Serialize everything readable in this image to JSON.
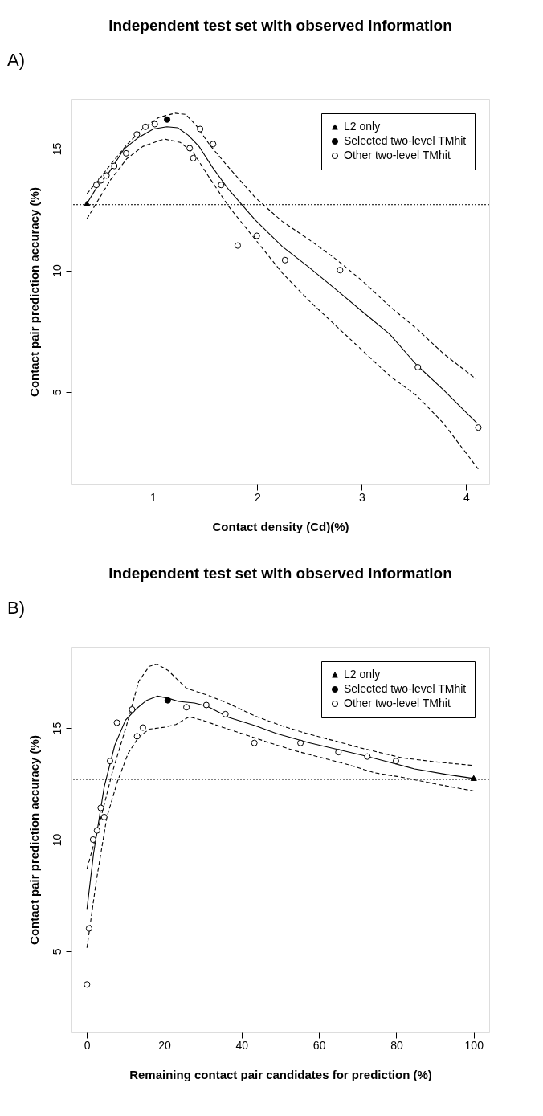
{
  "chart_data": [
    {
      "type": "scatter",
      "title": "Independent test set with observed information",
      "annotations": [
        "A)"
      ],
      "xlabel": "Contact density (Cd)(%)",
      "ylabel": "Contact pair prediction accuracy (%)",
      "xlim": [
        0.22,
        4.22
      ],
      "ylim": [
        1.2,
        17.05
      ],
      "xticks": [
        1,
        2,
        3,
        4
      ],
      "yticks": [
        5,
        10,
        15
      ],
      "grid": false,
      "legend": "top right",
      "ref_lines": [
        {
          "axis": "y",
          "value": 12.7,
          "line_style": "dotted",
          "color": "#000000"
        }
      ],
      "series": [
        {
          "name": "L2 only",
          "marker": "triangle",
          "color": "#000000",
          "x": [
            0.368
          ],
          "values": [
            12.75
          ]
        },
        {
          "name": "Selected two-level TMhit",
          "marker": "circle",
          "color": "#000000",
          "x": [
            1.136
          ],
          "values": [
            16.2
          ]
        },
        {
          "name": "Other two-level TMhit",
          "marker": "circle",
          "color": "#ffffff",
          "x": [
            0.458,
            0.504,
            0.555,
            0.63,
            0.743,
            0.846,
            0.928,
            1.018,
            1.352,
            1.386,
            1.452,
            1.576,
            1.653,
            1.812,
            1.995,
            2.265,
            2.792,
            3.537,
            4.116
          ],
          "values": [
            13.51,
            13.7,
            13.9,
            14.29,
            14.81,
            15.59,
            15.9,
            16.01,
            15.02,
            14.61,
            15.81,
            15.19,
            13.51,
            11.02,
            11.42,
            10.42,
            10.01,
            6.02,
            3.54
          ]
        },
        {
          "type": "line",
          "line_style": "solid",
          "color": "#000000",
          "x": [
            0.375,
            0.465,
            0.568,
            0.722,
            0.851,
            1.005,
            1.134,
            1.237,
            1.339,
            1.442,
            1.571,
            1.725,
            1.982,
            2.239,
            2.496,
            2.753,
            3.01,
            3.267,
            3.524,
            3.781,
            4.103
          ],
          "values": [
            12.8,
            13.43,
            13.95,
            14.98,
            15.43,
            15.81,
            15.9,
            15.86,
            15.55,
            15.09,
            14.23,
            13.32,
            12.06,
            10.98,
            10.12,
            9.21,
            8.29,
            7.38,
            6.12,
            5.09,
            3.72
          ]
        },
        {
          "type": "line",
          "line_style": "dashed",
          "color": "#000000",
          "x": [
            0.368,
            0.491,
            0.594,
            0.748,
            0.902,
            1.057,
            1.211,
            1.314,
            1.416,
            1.545,
            1.725,
            1.982,
            2.239,
            2.496,
            2.753,
            3.01,
            3.267,
            3.524,
            3.781,
            4.09
          ],
          "values": [
            13.15,
            13.78,
            14.35,
            15.15,
            15.83,
            16.29,
            16.46,
            16.41,
            15.95,
            15.15,
            14.23,
            12.98,
            12.01,
            11.26,
            10.46,
            9.55,
            8.52,
            7.61,
            6.58,
            5.55
          ]
        },
        {
          "type": "line",
          "line_style": "dashed",
          "color": "#000000",
          "x": [
            0.368,
            0.465,
            0.594,
            0.748,
            0.902,
            1.108,
            1.262,
            1.391,
            1.545,
            1.725,
            1.982,
            2.239,
            2.496,
            2.753,
            3.01,
            3.267,
            3.524,
            3.781,
            4.116
          ],
          "values": [
            12.12,
            12.81,
            13.72,
            14.58,
            15.09,
            15.4,
            15.26,
            14.81,
            13.78,
            12.63,
            11.26,
            9.89,
            8.75,
            7.72,
            6.69,
            5.66,
            4.86,
            3.72,
            1.83
          ]
        }
      ]
    },
    {
      "type": "scatter",
      "title": "Independent test set with observed information",
      "annotations": [
        "B)"
      ],
      "xlabel": "Remaining contact pair candidates for prediction (%)",
      "ylabel": "Contact pair prediction accuracy (%)",
      "xlim": [
        -4,
        104
      ],
      "ylim": [
        1.36,
        18.64
      ],
      "xticks": [
        0,
        20,
        40,
        60,
        80,
        100
      ],
      "yticks": [
        5,
        10,
        15
      ],
      "grid": false,
      "legend": "top right",
      "ref_lines": [
        {
          "axis": "y",
          "value": 12.7,
          "line_style": "dotted",
          "color": "#000000"
        }
      ],
      "series": [
        {
          "name": "L2 only",
          "marker": "triangle",
          "color": "#000000",
          "x": [
            100
          ],
          "values": [
            12.76
          ]
        },
        {
          "name": "Selected two-level TMhit",
          "marker": "circle",
          "color": "#000000",
          "x": [
            20.9
          ],
          "values": [
            16.24
          ]
        },
        {
          "name": "Other two-level TMhit",
          "marker": "circle",
          "color": "#ffffff",
          "x": [
            0,
            0.55,
            1.58,
            2.61,
            3.57,
            4.46,
            5.97,
            7.75,
            11.66,
            12.96,
            14.47,
            25.72,
            30.86,
            35.8,
            43.28,
            55.21,
            65.02,
            72.5,
            79.9
          ],
          "values": [
            3.51,
            6.02,
            10.0,
            10.41,
            11.42,
            11.01,
            13.52,
            15.24,
            15.83,
            14.63,
            15.02,
            15.93,
            16.03,
            15.62,
            14.33,
            14.33,
            13.92,
            13.72,
            13.52
          ]
        },
        {
          "type": "line",
          "line_style": "solid",
          "color": "#000000",
          "x": [
            0,
            1.71,
            4.46,
            7.2,
            9.95,
            12.69,
            15.43,
            18.18,
            20.9,
            23.66,
            27.78,
            31.2,
            36.7,
            43.55,
            49.04,
            57.27,
            64.13,
            70.99,
            77.85,
            84.71,
            92.94,
            100
          ],
          "values": [
            6.89,
            9.38,
            12.36,
            14.23,
            15.35,
            15.85,
            16.24,
            16.43,
            16.34,
            16.19,
            16.12,
            15.97,
            15.47,
            15.1,
            14.75,
            14.35,
            14.07,
            13.79,
            13.48,
            13.17,
            12.92,
            12.74
          ]
        },
        {
          "type": "line",
          "line_style": "dashed",
          "color": "#000000",
          "x": [
            0,
            3.09,
            6.52,
            10.63,
            13.37,
            16.12,
            18.18,
            20.9,
            25.72,
            31.2,
            36.7,
            43.55,
            50.41,
            57.27,
            64.13,
            70.99,
            81.28,
            90.19,
            100
          ],
          "values": [
            8.69,
            10.62,
            12.99,
            15.35,
            17.09,
            17.77,
            17.86,
            17.59,
            16.78,
            16.47,
            16.09,
            15.53,
            15.1,
            14.73,
            14.42,
            14.1,
            13.67,
            13.48,
            13.32
          ]
        },
        {
          "type": "line",
          "line_style": "dashed",
          "color": "#000000",
          "x": [
            0,
            2.4,
            5.14,
            7.89,
            10.63,
            13.37,
            16.12,
            20.23,
            22.98,
            26.41,
            29.84,
            33.95,
            40.12,
            46.98,
            53.84,
            60.7,
            67.56,
            74.42,
            81.28,
            90.19,
            100
          ],
          "values": [
            5.15,
            8.13,
            11.0,
            12.61,
            13.86,
            14.6,
            14.95,
            15.04,
            15.16,
            15.5,
            15.35,
            15.1,
            14.75,
            14.35,
            13.98,
            13.67,
            13.36,
            12.99,
            12.8,
            12.49,
            12.18
          ]
        }
      ]
    }
  ]
}
